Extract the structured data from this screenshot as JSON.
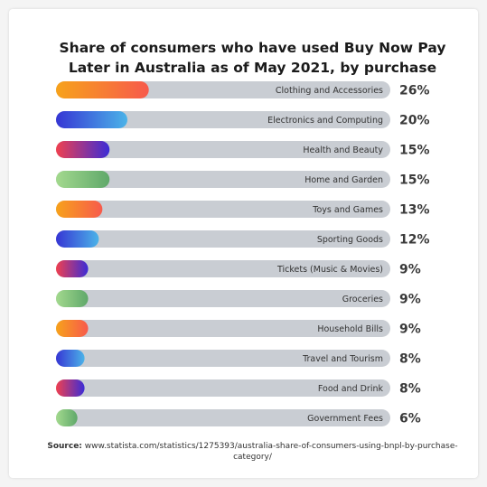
{
  "chart_data": {
    "type": "bar",
    "orientation": "horizontal",
    "title": "Share of consumers who have used Buy Now Pay Later in Australia as of May 2021, by purchase",
    "categories": [
      "Clothing and Accessories",
      "Electronics and Computing",
      "Health and Beauty",
      "Home and Garden",
      "Toys and Games",
      "Sporting Goods",
      "Tickets (Music & Movies)",
      "Groceries",
      "Household Bills",
      "Travel and Tourism",
      "Food and Drink",
      "Government Fees"
    ],
    "values": [
      26,
      20,
      15,
      15,
      13,
      12,
      9,
      9,
      9,
      8,
      8,
      6
    ],
    "value_labels": [
      "26%",
      "20%",
      "15%",
      "15%",
      "13%",
      "12%",
      "9%",
      "9%",
      "9%",
      "8%",
      "8%",
      "6%"
    ],
    "unit": "%",
    "xlim": [
      0,
      100
    ],
    "grid": false,
    "legend": "none",
    "colors": {
      "track": "#c9cdd3",
      "gradients": [
        [
          "#f7a21b",
          "#f75a4c"
        ],
        [
          "#3636d4",
          "#4bb3e8"
        ],
        [
          "#f0404f",
          "#3b2cd6"
        ],
        [
          "#a3d98e",
          "#5fa86a"
        ]
      ]
    }
  },
  "source": {
    "label": "Source:",
    "text": "www.statista.com/statistics/1275393/australia-share-of-consumers-using-bnpl-by-purchase-category/"
  }
}
